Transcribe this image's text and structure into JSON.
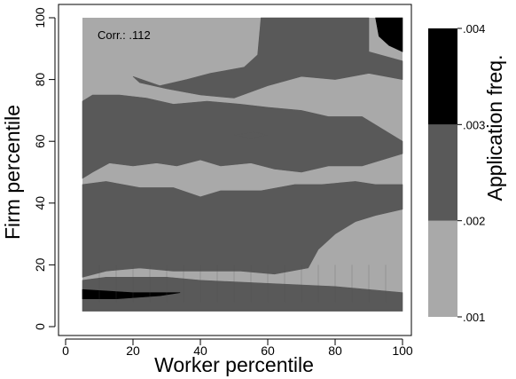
{
  "chart_data": {
    "type": "heatmap",
    "annotation": "Corr.: .112",
    "xlabel": "Worker percentile",
    "ylabel": "Firm percentile",
    "xlim": [
      0,
      100
    ],
    "ylim": [
      0,
      100
    ],
    "xticks": [
      "0",
      "20",
      "40",
      "60",
      "80",
      "100"
    ],
    "yticks": [
      "0",
      "20",
      "40",
      "60",
      "80",
      "100"
    ],
    "colorbar": {
      "label": "Application freq.",
      "ticks": [
        ".001",
        ".002",
        ".003",
        ".004"
      ],
      "bands": [
        {
          "from": 0.001,
          "to": 0.002,
          "color": "#a9a9a9"
        },
        {
          "from": 0.002,
          "to": 0.003,
          "color": "#595959"
        },
        {
          "from": 0.003,
          "to": 0.004,
          "color": "#000000"
        }
      ]
    },
    "grid": false,
    "legend_position": "right",
    "data_extent": {
      "x": [
        5,
        100
      ],
      "y": [
        5,
        100
      ]
    },
    "regions": [
      {
        "level": ".002-.003",
        "color": "#595959",
        "points": [
          [
            5,
            48
          ],
          [
            8,
            50
          ],
          [
            13,
            53
          ],
          [
            20,
            52
          ],
          [
            27,
            53
          ],
          [
            33,
            52
          ],
          [
            40,
            54
          ],
          [
            46,
            52
          ],
          [
            55,
            53
          ],
          [
            62,
            51
          ],
          [
            70,
            50
          ],
          [
            78,
            52
          ],
          [
            88,
            52
          ],
          [
            100,
            56
          ],
          [
            100,
            60
          ],
          [
            88,
            68
          ],
          [
            78,
            68
          ],
          [
            70,
            70
          ],
          [
            60,
            71
          ],
          [
            52,
            72
          ],
          [
            42,
            73
          ],
          [
            32,
            72
          ],
          [
            24,
            74
          ],
          [
            16,
            75
          ],
          [
            8,
            75
          ],
          [
            5,
            73
          ]
        ]
      },
      {
        "level": ".002-.003",
        "color": "#595959",
        "points": [
          [
            20,
            81
          ],
          [
            28,
            78
          ],
          [
            36,
            80
          ],
          [
            43,
            82
          ],
          [
            53,
            84
          ],
          [
            57,
            88
          ],
          [
            58,
            100
          ],
          [
            90,
            100
          ],
          [
            90,
            89
          ],
          [
            100,
            86
          ],
          [
            100,
            80
          ],
          [
            90,
            82
          ],
          [
            80,
            80
          ],
          [
            70,
            81
          ],
          [
            60,
            78
          ],
          [
            50,
            74
          ],
          [
            40,
            75
          ],
          [
            30,
            77
          ],
          [
            22,
            79
          ]
        ]
      },
      {
        "level": ".002-.003",
        "color": "#595959",
        "points": [
          [
            5,
            5
          ],
          [
            100,
            5
          ],
          [
            100,
            11
          ],
          [
            80,
            13
          ],
          [
            60,
            14
          ],
          [
            40,
            15
          ],
          [
            30,
            16
          ],
          [
            20,
            16
          ],
          [
            12,
            16
          ],
          [
            5,
            15
          ]
        ]
      },
      {
        "level": ".002-.003",
        "color": "#595959",
        "points": [
          [
            5,
            16
          ],
          [
            12,
            18
          ],
          [
            22,
            19
          ],
          [
            32,
            18
          ],
          [
            42,
            18
          ],
          [
            52,
            18
          ],
          [
            62,
            17
          ],
          [
            72,
            19
          ],
          [
            75,
            25
          ],
          [
            80,
            30
          ],
          [
            86,
            34
          ],
          [
            92,
            36
          ],
          [
            100,
            38
          ],
          [
            100,
            46
          ],
          [
            92,
            46
          ],
          [
            86,
            47
          ],
          [
            76,
            46
          ],
          [
            68,
            46
          ],
          [
            58,
            44
          ],
          [
            46,
            44
          ],
          [
            40,
            42
          ],
          [
            32,
            45
          ],
          [
            22,
            45
          ],
          [
            12,
            47
          ],
          [
            5,
            46
          ]
        ]
      },
      {
        "level": ".002-.003",
        "color": "#595959",
        "points": [
          [
            50,
            62
          ],
          [
            55,
            61
          ],
          [
            60,
            62
          ],
          [
            56,
            63
          ]
        ]
      },
      {
        "level": ".003-.004",
        "color": "#000000",
        "points": [
          [
            5,
            9
          ],
          [
            15,
            9
          ],
          [
            28,
            10
          ],
          [
            34,
            11
          ],
          [
            20,
            11
          ],
          [
            5,
            12
          ]
        ]
      },
      {
        "level": ".003-.004",
        "color": "#000000",
        "points": [
          [
            92,
            100
          ],
          [
            100,
            100
          ],
          [
            100,
            89
          ],
          [
            96,
            91
          ],
          [
            93,
            94
          ]
        ]
      }
    ]
  }
}
